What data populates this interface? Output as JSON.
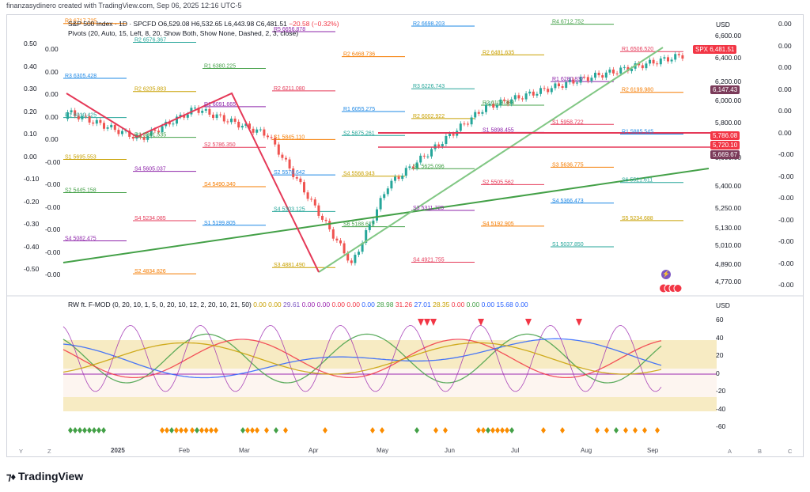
{
  "credit": "finanzasydinero created with TradingView.com, Sep 06, 2025 12:16 UTC-5",
  "title": {
    "symbol": "S&P 500 Index · 1D · SPCFD",
    "open": "O6,529.08",
    "high": "H6,532.65",
    "low": "L6,443.98",
    "close": "C6,481.51",
    "change": "−20.58 (−0.32%)"
  },
  "pivots_legend": "Pivots (20, Auto, 15, Left, 8, 20, Show Both, Show None, Dashed, 2, 3, close)",
  "currency": "USD",
  "left_axis": [
    "0.50",
    "0.40",
    "0.30",
    "0.20",
    "0.10",
    "0.00",
    "-0.10",
    "-0.20",
    "-0.30",
    "-0.40",
    "-0.50"
  ],
  "left_axis_inner": [
    "0.00",
    "0.00",
    "0.00",
    "0.00",
    "0.00",
    "-0.00",
    "-0.00",
    "-0.00",
    "-0.00",
    "-0.00",
    "-0.00"
  ],
  "right_axis_prices": [
    "6,600.00",
    "6,400.00",
    "6,200.00",
    "6,000.00",
    "5,800.00",
    "5,600.00",
    "5,400.00",
    "5,250.00",
    "5,130.00",
    "5,010.00",
    "4,890.00",
    "4,770.00"
  ],
  "right_axis_far": [
    "0.00",
    "0.00",
    "0.00",
    "0.00",
    "0.00",
    "0.00",
    "-0.00",
    "-0.00",
    "-0.00",
    "-0.00",
    "-0.00",
    "-0.00",
    "-0.00"
  ],
  "price_tags": [
    {
      "label": "SPX",
      "value": "6,481.51",
      "color": "#f23645"
    },
    {
      "label": "",
      "value": "6,147.43",
      "color": "#7b3b5a"
    },
    {
      "label": "",
      "value": "5,786.08",
      "color": "#f23645"
    },
    {
      "label": "",
      "value": "5,720.10",
      "color": "#f23645"
    },
    {
      "label": "",
      "value": "5,669.67",
      "color": "#7b3b5a"
    }
  ],
  "pivot_labels": [
    {
      "t": "R3",
      "v": "6717.725"
    },
    {
      "t": "R4",
      "v": "6712.752"
    },
    {
      "t": "R2",
      "v": "6698.203"
    },
    {
      "t": "R5",
      "v": "6656.878"
    },
    {
      "t": "R2",
      "v": "6576.367"
    },
    {
      "t": "R1",
      "v": "6506.520"
    },
    {
      "t": "R2",
      "v": "6481.635"
    },
    {
      "t": "R2",
      "v": "6468.736"
    },
    {
      "t": "R1",
      "v": "6380.225"
    },
    {
      "t": "R3",
      "v": "6305.428"
    },
    {
      "t": "R1",
      "v": "6280.837"
    },
    {
      "t": "R3",
      "v": "6226.743"
    },
    {
      "t": "R2",
      "v": "6211.080"
    },
    {
      "t": "R2",
      "v": "6205.883"
    },
    {
      "t": "R2",
      "v": "6199.980"
    },
    {
      "t": "R2",
      "v": "6103.383"
    },
    {
      "t": "R1",
      "v": "6055.275"
    },
    {
      "t": "R1",
      "v": "6091.665"
    },
    {
      "t": "R1",
      "v": "6010.425"
    },
    {
      "t": "S1",
      "v": "5958.722"
    },
    {
      "t": "R2",
      "v": "6002.922"
    },
    {
      "t": "S1",
      "v": "5845.110"
    },
    {
      "t": "R1",
      "v": "5861.535"
    },
    {
      "t": "R1",
      "v": "5885.545"
    },
    {
      "t": "S1",
      "v": "5898.455"
    },
    {
      "t": "S2",
      "v": "5875.261"
    },
    {
      "t": "S2",
      "v": "5786.350"
    },
    {
      "t": "S1",
      "v": "5695.553"
    },
    {
      "t": "S3",
      "v": "5636.775"
    },
    {
      "t": "S1",
      "v": "5625.096"
    },
    {
      "t": "S2",
      "v": "5578.642"
    },
    {
      "t": "S4",
      "v": "5605.037"
    },
    {
      "t": "S6",
      "v": "5521.611"
    },
    {
      "t": "S2",
      "v": "5505.562"
    },
    {
      "t": "S4",
      "v": "5568.943"
    },
    {
      "t": "S4",
      "v": "5490.340"
    },
    {
      "t": "S2",
      "v": "5445.158"
    },
    {
      "t": "S4",
      "v": "5366.473"
    },
    {
      "t": "S3",
      "v": "5311.725"
    },
    {
      "t": "S4",
      "v": "5303.125"
    },
    {
      "t": "S4",
      "v": "5234.085"
    },
    {
      "t": "S5",
      "v": "5234.688"
    },
    {
      "t": "S4",
      "v": "5192.905"
    },
    {
      "t": "S6",
      "v": "5188.672"
    },
    {
      "t": "S1",
      "v": "5199.805"
    },
    {
      "t": "S4",
      "v": "5082.475"
    },
    {
      "t": "S1",
      "v": "5037.850"
    },
    {
      "t": "S4",
      "v": "4921.755"
    },
    {
      "t": "S3",
      "v": "4881.490"
    },
    {
      "t": "S2",
      "v": "4834.826"
    }
  ],
  "rw_legend": {
    "name": "RW ft. F-MOD (0, 20, 10, 1, 5, 0, 20, 10, 12, 2, 20, 10, 21, 50)",
    "values": [
      {
        "v": "0.00",
        "c": "#c8a000"
      },
      {
        "v": "0.00",
        "c": "#c8a000"
      },
      {
        "v": "29.61",
        "c": "#7e57c2"
      },
      {
        "v": "0.00",
        "c": "#9c27b0"
      },
      {
        "v": "0.00",
        "c": "#9c27b0"
      },
      {
        "v": "0.00",
        "c": "#f23645"
      },
      {
        "v": "0.00",
        "c": "#f23645"
      },
      {
        "v": "0.00",
        "c": "#2962ff"
      },
      {
        "v": "28.98",
        "c": "#43a047"
      },
      {
        "v": "31.26",
        "c": "#f23645"
      },
      {
        "v": "27.01",
        "c": "#2962ff"
      },
      {
        "v": "28.35",
        "c": "#c8a000"
      },
      {
        "v": "0.00",
        "c": "#f23645"
      },
      {
        "v": "0.00",
        "c": "#43a047"
      },
      {
        "v": "0.00",
        "c": "#2962ff"
      },
      {
        "v": "15.68",
        "c": "#2962ff"
      },
      {
        "v": "0.00",
        "c": "#2962ff"
      }
    ]
  },
  "rw_axis": [
    "60",
    "40",
    "20",
    "0",
    "-20",
    "-40",
    "-60"
  ],
  "x_axis": [
    "2025",
    "Feb",
    "Mar",
    "Apr",
    "May",
    "Jun",
    "Jul",
    "Aug",
    "Sep"
  ],
  "corner_left": [
    "Y",
    "Z"
  ],
  "corner_right": [
    "A",
    "B",
    "C"
  ],
  "brand": "TradingView",
  "colors": {
    "up": "#26a69a",
    "down": "#ef5350",
    "trend_green": "#43a047",
    "trend_red": "#e53958",
    "band": "#f3e2a9"
  }
}
